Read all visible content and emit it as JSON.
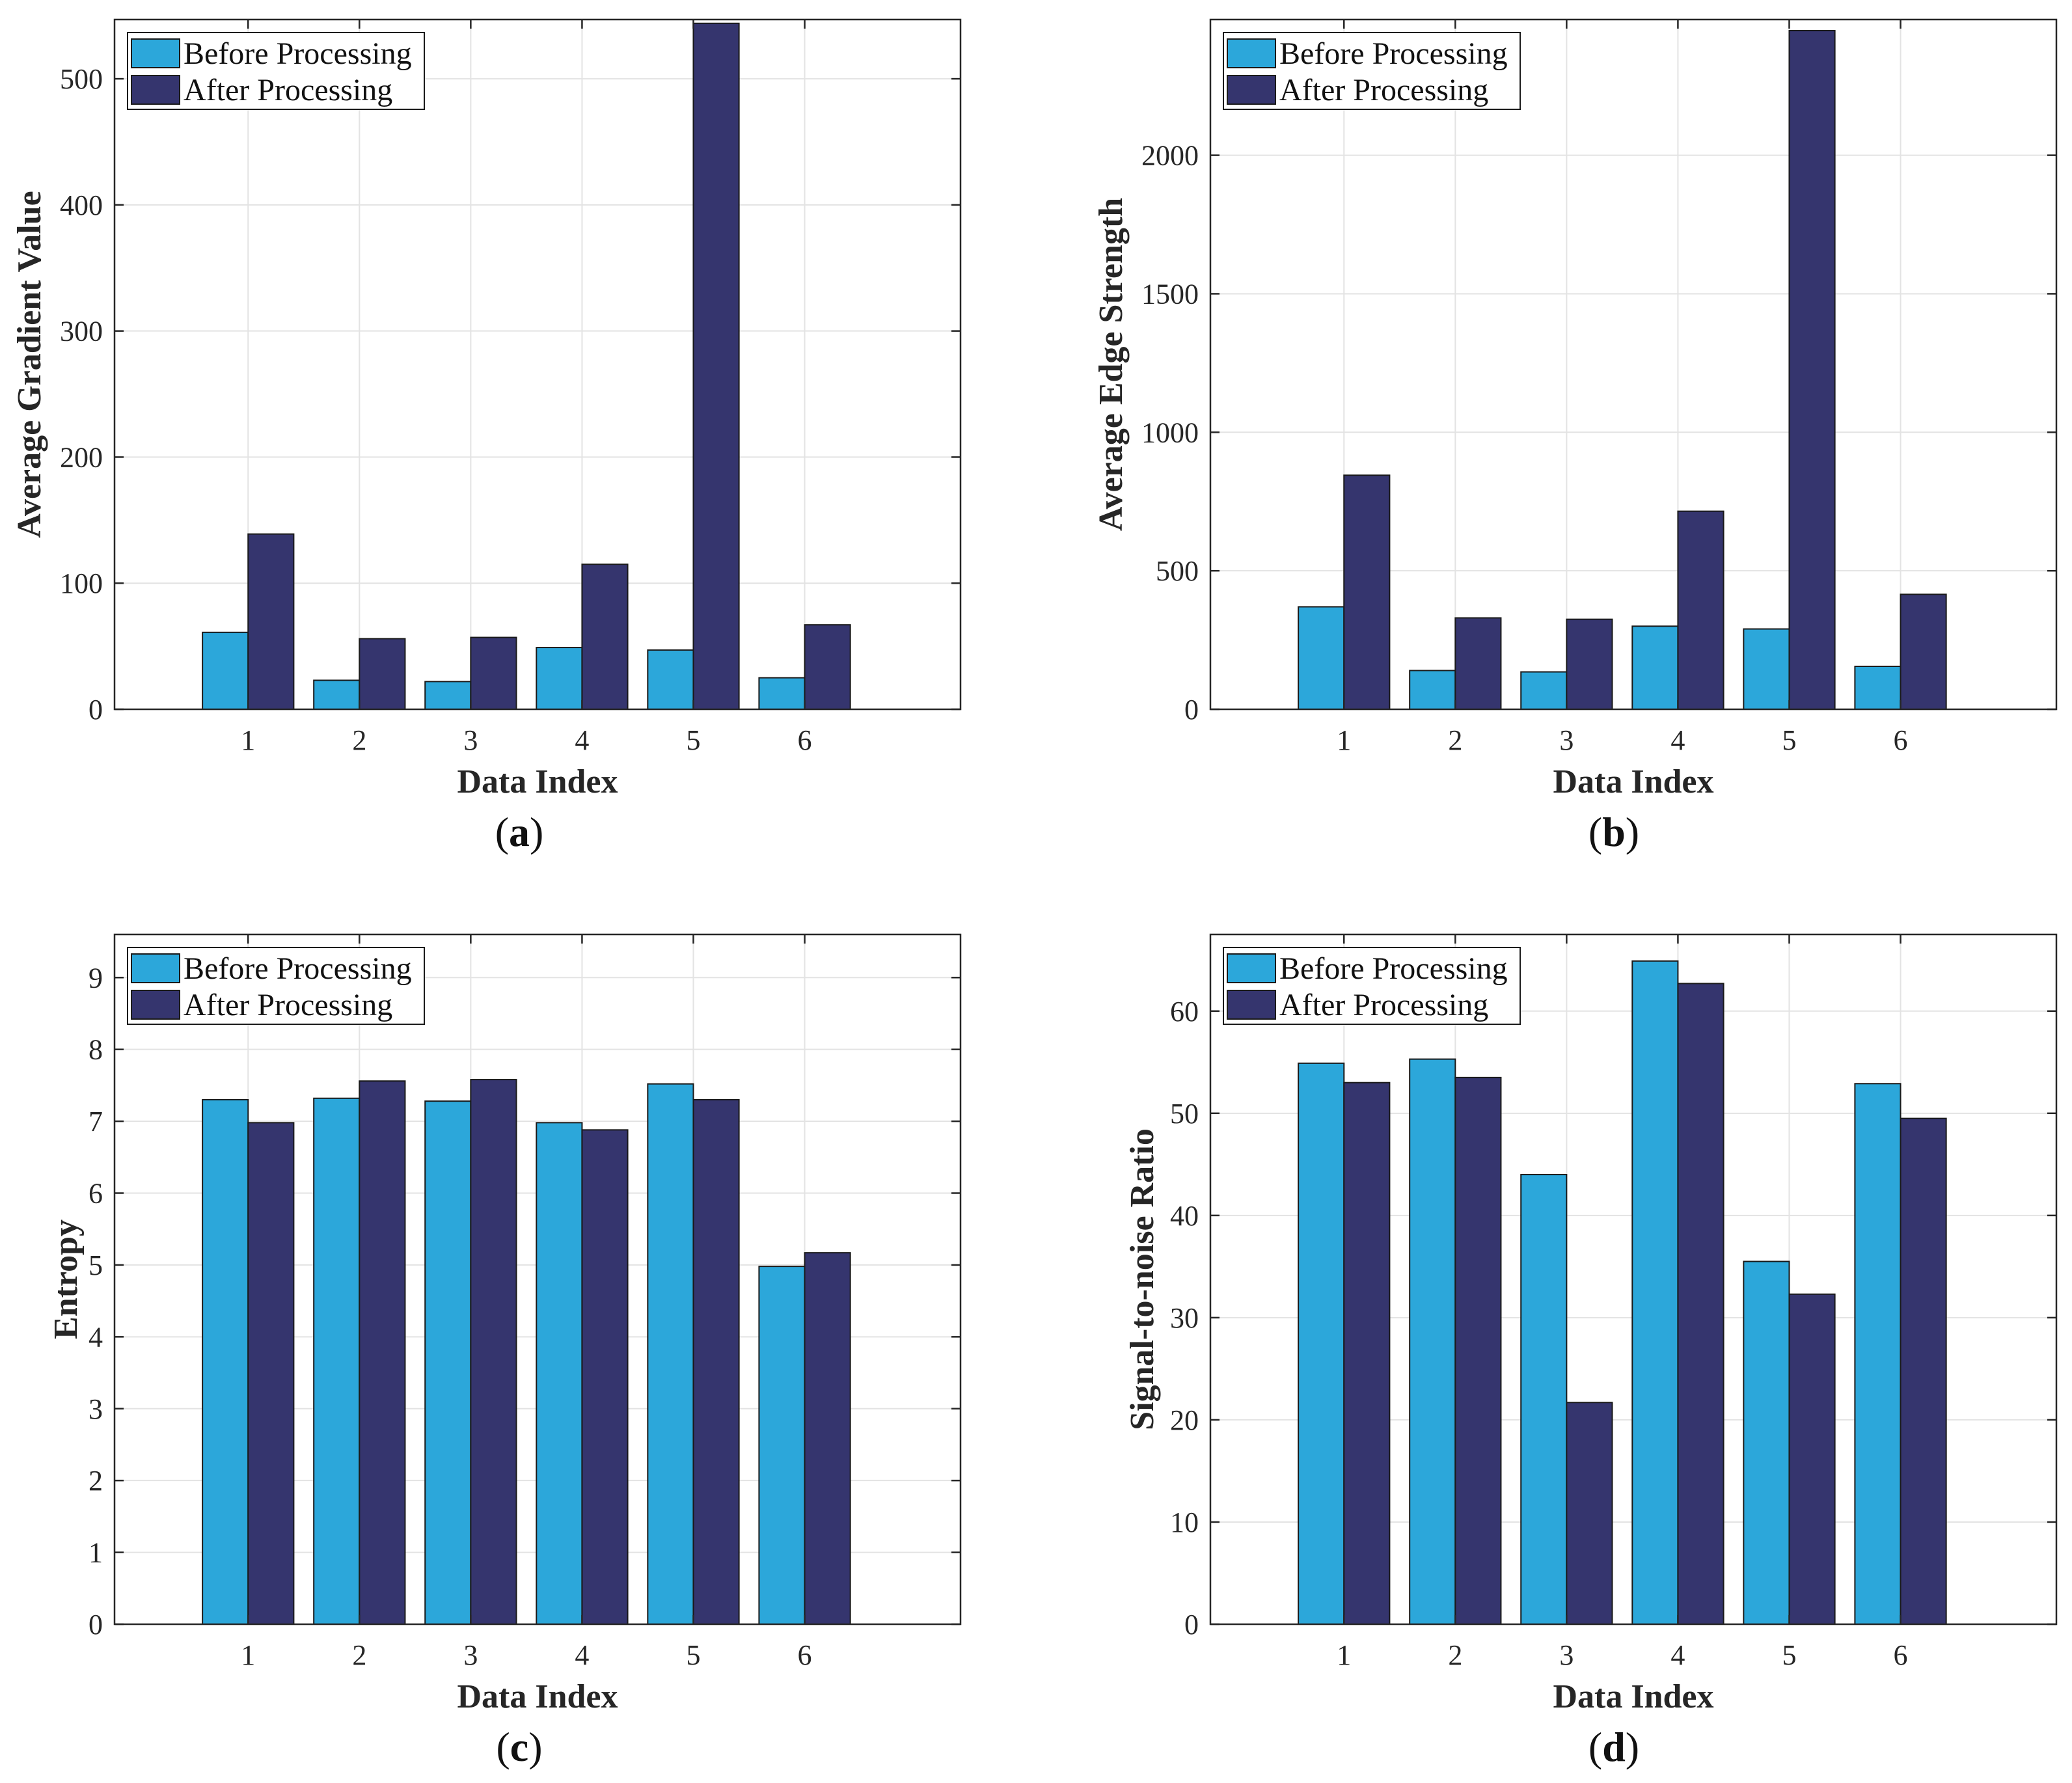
{
  "colors": {
    "before": "#2ca7da",
    "after": "#35356e",
    "grid": "#e3e3e3",
    "axis": "#262626"
  },
  "chart_data": [
    {
      "type": "bar",
      "panel": "a",
      "caption_letter": "a",
      "categories": [
        "1",
        "2",
        "3",
        "4",
        "5",
        "6"
      ],
      "series": [
        {
          "name": "Before Processing",
          "values": [
            61,
            23,
            22,
            49,
            47,
            25
          ]
        },
        {
          "name": "After Processing",
          "values": [
            139,
            56,
            57,
            115,
            544,
            67
          ]
        }
      ],
      "xlabel": "Data Index",
      "ylabel": "Average Gradient Value",
      "ylim": [
        0,
        547
      ],
      "yticks": [
        0,
        100,
        200,
        300,
        400,
        500
      ],
      "grid": true,
      "legend_position": "top-left"
    },
    {
      "type": "bar",
      "panel": "b",
      "caption_letter": "b",
      "categories": [
        "1",
        "2",
        "3",
        "4",
        "5",
        "6"
      ],
      "series": [
        {
          "name": "Before Processing",
          "values": [
            370,
            140,
            135,
            300,
            290,
            155
          ]
        },
        {
          "name": "After Processing",
          "values": [
            845,
            330,
            325,
            715,
            2450,
            415
          ]
        }
      ],
      "xlabel": "Data Index",
      "ylabel": "Average Edge Strength",
      "ylim": [
        0,
        2490
      ],
      "yticks": [
        0,
        500,
        1000,
        1500,
        2000
      ],
      "grid": true,
      "legend_position": "top-left"
    },
    {
      "type": "bar",
      "panel": "c",
      "caption_letter": "c",
      "categories": [
        "1",
        "2",
        "3",
        "4",
        "5",
        "6"
      ],
      "series": [
        {
          "name": "Before Processing",
          "values": [
            7.3,
            7.32,
            7.28,
            6.98,
            7.52,
            4.98
          ]
        },
        {
          "name": "After Processing",
          "values": [
            6.98,
            7.56,
            7.58,
            6.88,
            7.3,
            5.17
          ]
        }
      ],
      "xlabel": "Data Index",
      "ylabel": "Entropy",
      "ylim": [
        0,
        9.6
      ],
      "yticks": [
        0,
        1,
        2,
        3,
        4,
        5,
        6,
        7,
        8,
        9
      ],
      "grid": true,
      "legend_position": "top-left"
    },
    {
      "type": "bar",
      "panel": "d",
      "caption_letter": "d",
      "categories": [
        "1",
        "2",
        "3",
        "4",
        "5",
        "6"
      ],
      "series": [
        {
          "name": "Before Processing",
          "values": [
            54.9,
            55.3,
            44.0,
            64.9,
            35.5,
            52.9
          ]
        },
        {
          "name": "After Processing",
          "values": [
            53.0,
            53.5,
            21.7,
            62.7,
            32.3,
            49.5
          ]
        }
      ],
      "xlabel": "Data Index",
      "ylabel": "Signal-to-noise Ratio",
      "ylim": [
        0,
        67.5
      ],
      "yticks": [
        0,
        10,
        20,
        30,
        40,
        50,
        60
      ],
      "grid": true,
      "legend_position": "top-left"
    }
  ]
}
